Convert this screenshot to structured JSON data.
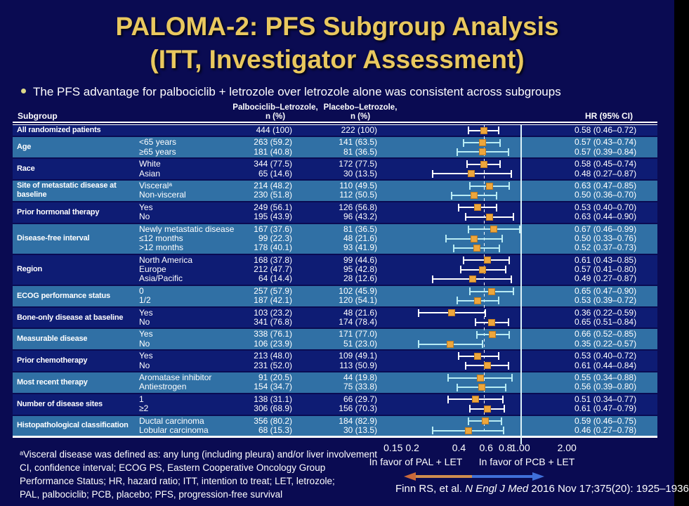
{
  "slide": {
    "title_line1": "PALOMA-2: PFS Subgroup Analysis",
    "title_line2": "(ITT, Investigator Assessment)",
    "bullet": "The PFS advantage for palbociclib + letrozole over letrozole alone was consistent across subgroups"
  },
  "table": {
    "headers": {
      "subgroup": "Subgroup",
      "pal_line1": "Palbociclib–Letrozole,",
      "pal_line2": "n (%)",
      "pcb_line1": "Placebo–Letrozole,",
      "pcb_line2": "n (%)",
      "hr": "HR (95% CI)"
    }
  },
  "chart_data": {
    "type": "forest",
    "x_scale": "log10",
    "x_reference_solid": 1.0,
    "x_reference_dashed": 0.58,
    "axis_ticks": [
      0.15,
      0.2,
      0.4,
      0.6,
      0.8,
      1.0,
      2.0
    ],
    "axis_tick_labels": [
      "0.15",
      "0.2",
      "0.4",
      "0.6",
      "0.8",
      "1.00",
      "2.00"
    ],
    "groups": [
      {
        "label": "All randomized patients",
        "rows": [
          {
            "level": "",
            "pal": "444 (100)",
            "pcb": "222 (100)",
            "hr": 0.58,
            "lo": 0.46,
            "hi": 0.72,
            "hr_text": "0.58 (0.46–0.72)"
          }
        ]
      },
      {
        "label": "Age",
        "rows": [
          {
            "level": "<65 years",
            "pal": "263 (59.2)",
            "pcb": "141 (63.5)",
            "hr": 0.57,
            "lo": 0.43,
            "hi": 0.74,
            "hr_text": "0.57 (0.43–0.74)"
          },
          {
            "level": "≥65 years",
            "pal": "181 (40.8)",
            "pcb": "81 (36.5)",
            "hr": 0.57,
            "lo": 0.39,
            "hi": 0.84,
            "hr_text": "0.57 (0.39–0.84)"
          }
        ]
      },
      {
        "label": "Race",
        "rows": [
          {
            "level": "White",
            "pal": "344 (77.5)",
            "pcb": "172 (77.5)",
            "hr": 0.58,
            "lo": 0.45,
            "hi": 0.74,
            "hr_text": "0.58 (0.45–0.74)"
          },
          {
            "level": "Asian",
            "pal": "65 (14.6)",
            "pcb": "30 (13.5)",
            "hr": 0.48,
            "lo": 0.27,
            "hi": 0.87,
            "hr_text": "0.48 (0.27–0.87)"
          }
        ]
      },
      {
        "label": "Site of metastatic disease at baseline",
        "rows": [
          {
            "level": "Visceralᵃ",
            "pal": "214 (48.2)",
            "pcb": "110 (49.5)",
            "hr": 0.63,
            "lo": 0.47,
            "hi": 0.85,
            "hr_text": "0.63 (0.47–0.85)"
          },
          {
            "level": "Non-visceral",
            "pal": "230 (51.8)",
            "pcb": "112 (50.5)",
            "hr": 0.5,
            "lo": 0.36,
            "hi": 0.7,
            "hr_text": "0.50 (0.36–0.70)"
          }
        ]
      },
      {
        "label": "Prior hormonal therapy",
        "rows": [
          {
            "level": "Yes",
            "pal": "249 (56.1)",
            "pcb": "126 (56.8)",
            "hr": 0.53,
            "lo": 0.4,
            "hi": 0.7,
            "hr_text": "0.53 (0.40–0.70)"
          },
          {
            "level": "No",
            "pal": "195 (43.9)",
            "pcb": "96 (43.2)",
            "hr": 0.63,
            "lo": 0.44,
            "hi": 0.9,
            "hr_text": "0.63 (0.44–0.90)"
          }
        ]
      },
      {
        "label": "Disease-free interval",
        "rows": [
          {
            "level": "Newly metastatic disease",
            "pal": "167 (37.6)",
            "pcb": "81 (36.5)",
            "hr": 0.67,
            "lo": 0.46,
            "hi": 0.99,
            "hr_text": "0.67 (0.46–0.99)"
          },
          {
            "level": "≤12 months",
            "pal": "99 (22.3)",
            "pcb": "48 (21.6)",
            "hr": 0.5,
            "lo": 0.33,
            "hi": 0.76,
            "hr_text": "0.50 (0.33–0.76)"
          },
          {
            "level": ">12 months",
            "pal": "178 (40.1)",
            "pcb": "93 (41.9)",
            "hr": 0.52,
            "lo": 0.37,
            "hi": 0.73,
            "hr_text": "0.52 (0.37–0.73)"
          }
        ]
      },
      {
        "label": "Region",
        "rows": [
          {
            "level": "North America",
            "pal": "168 (37.8)",
            "pcb": "99 (44.6)",
            "hr": 0.61,
            "lo": 0.43,
            "hi": 0.85,
            "hr_text": "0.61 (0.43–0.85)"
          },
          {
            "level": "Europe",
            "pal": "212 (47.7)",
            "pcb": "95 (42.8)",
            "hr": 0.57,
            "lo": 0.41,
            "hi": 0.8,
            "hr_text": "0.57 (0.41–0.80)"
          },
          {
            "level": "Asia/Pacific",
            "pal": "64 (14.4)",
            "pcb": "28 (12.6)",
            "hr": 0.49,
            "lo": 0.27,
            "hi": 0.87,
            "hr_text": "0.49 (0.27–0.87)"
          }
        ]
      },
      {
        "label": "ECOG performance status",
        "rows": [
          {
            "level": "0",
            "pal": "257 (57.9)",
            "pcb": "102 (45.9)",
            "hr": 0.65,
            "lo": 0.47,
            "hi": 0.9,
            "hr_text": "0.65 (0.47–0.90)"
          },
          {
            "level": "1/2",
            "pal": "187 (42.1)",
            "pcb": "120 (54.1)",
            "hr": 0.53,
            "lo": 0.39,
            "hi": 0.72,
            "hr_text": "0.53 (0.39–0.72)"
          }
        ]
      },
      {
        "label": "Bone-only disease at baseline",
        "rows": [
          {
            "level": "Yes",
            "pal": "103 (23.2)",
            "pcb": "48 (21.6)",
            "hr": 0.36,
            "lo": 0.22,
            "hi": 0.59,
            "hr_text": "0.36 (0.22–0.59)"
          },
          {
            "level": "No",
            "pal": "341 (76.8)",
            "pcb": "174 (78.4)",
            "hr": 0.65,
            "lo": 0.51,
            "hi": 0.84,
            "hr_text": "0.65 (0.51–0.84)"
          }
        ]
      },
      {
        "label": "Measurable disease",
        "rows": [
          {
            "level": "Yes",
            "pal": "338 (76.1)",
            "pcb": "171 (77.0)",
            "hr": 0.66,
            "lo": 0.52,
            "hi": 0.85,
            "hr_text": "0.66 (0.52–0.85)"
          },
          {
            "level": "No",
            "pal": "106 (23.9)",
            "pcb": "51 (23.0)",
            "hr": 0.35,
            "lo": 0.22,
            "hi": 0.57,
            "hr_text": "0.35 (0.22–0.57)"
          }
        ]
      },
      {
        "label": "Prior chemotherapy",
        "rows": [
          {
            "level": "Yes",
            "pal": "213 (48.0)",
            "pcb": "109 (49.1)",
            "hr": 0.53,
            "lo": 0.4,
            "hi": 0.72,
            "hr_text": "0.53 (0.40–0.72)"
          },
          {
            "level": "No",
            "pal": "231 (52.0)",
            "pcb": "113 (50.9)",
            "hr": 0.61,
            "lo": 0.44,
            "hi": 0.84,
            "hr_text": "0.61 (0.44–0.84)"
          }
        ]
      },
      {
        "label": "Most recent therapy",
        "rows": [
          {
            "level": "Aromatase inhibitor",
            "pal": "91 (20.5)",
            "pcb": "44 (19.8)",
            "hr": 0.55,
            "lo": 0.34,
            "hi": 0.88,
            "hr_text": "0.55 (0.34–0.88)"
          },
          {
            "level": "Antiestrogen",
            "pal": "154 (34.7)",
            "pcb": "75 (33.8)",
            "hr": 0.56,
            "lo": 0.39,
            "hi": 0.8,
            "hr_text": "0.56 (0.39–0.80)"
          }
        ]
      },
      {
        "label": "Number of disease sites",
        "rows": [
          {
            "level": "1",
            "pal": "138 (31.1)",
            "pcb": "66 (29.7)",
            "hr": 0.51,
            "lo": 0.34,
            "hi": 0.77,
            "hr_text": "0.51 (0.34–0.77)"
          },
          {
            "level": "≥2",
            "pal": "306 (68.9)",
            "pcb": "156 (70.3)",
            "hr": 0.61,
            "lo": 0.47,
            "hi": 0.79,
            "hr_text": "0.61 (0.47–0.79)"
          }
        ]
      },
      {
        "label": "Histopathological classification",
        "rows": [
          {
            "level": "Ductal carcinoma",
            "pal": "356 (80.2)",
            "pcb": "184 (82.9)",
            "hr": 0.59,
            "lo": 0.46,
            "hi": 0.75,
            "hr_text": "0.59 (0.46–0.75)"
          },
          {
            "level": "Lobular carcinoma",
            "pal": "68 (15.3)",
            "pcb": "30 (13.5)",
            "hr": 0.46,
            "lo": 0.27,
            "hi": 0.78,
            "hr_text": "0.46 (0.27–0.78)"
          }
        ]
      }
    ]
  },
  "footer": {
    "favor_left": "In favor of PAL + LET",
    "favor_right": "In favor of PCB + LET",
    "footnotes": [
      "ᵃVisceral disease was defined as: any lung (including pleura) and/or liver involvement",
      "CI, confidence interval; ECOG PS, Eastern Cooperative Oncology Group",
      "Performance Status; HR, hazard ratio; ITT, intention to treat; LET, letrozole;",
      "PAL, palbociclib; PCB, placebo; PFS, progression-free survival"
    ],
    "citation_pre": "Finn RS, et al. ",
    "citation_italic": "N Engl J Med",
    "citation_post": " 2016 Nov 17;375(20):  1925–1936"
  },
  "colors": {
    "background": "#0a0b52",
    "row_dark": "#0e1c74",
    "row_light": "#3070a5",
    "title": "#e9c85f",
    "marker": "#eda63c",
    "whisker_on_dark": "#ffffff",
    "whisker_on_light": "#b9ecf4",
    "arrow_left": "#cf8d4e",
    "arrow_right": "#3f6fd8"
  }
}
